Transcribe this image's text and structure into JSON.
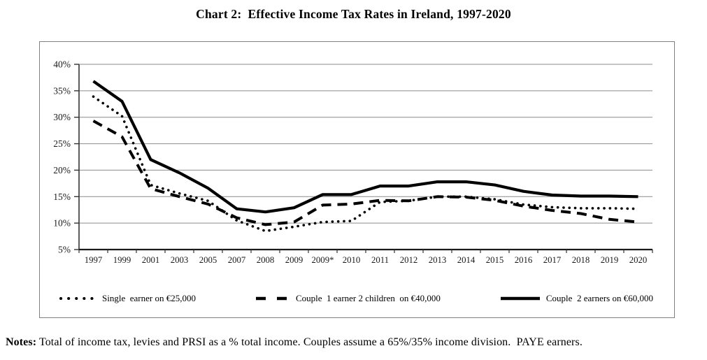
{
  "page": {
    "title": "Chart 2:  Effective Income Tax Rates in Ireland, 1997-2020",
    "notes_label": "Notes:",
    "notes_text": " Total of income tax, levies and PRSI as a % total income. Couples assume a 65%/35% income division.  PAYE earners."
  },
  "chart_data": {
    "type": "line",
    "title": "Chart 2: Effective Income Tax Rates in Ireland, 1997-2020",
    "categories": [
      "1997",
      "1999",
      "2001",
      "2003",
      "2005",
      "2007",
      "2008",
      "2009",
      "2009*",
      "2010",
      "2011",
      "2012",
      "2013",
      "2014",
      "2015",
      "2016",
      "2017",
      "2018",
      "2019",
      "2020"
    ],
    "series": [
      {
        "name": "Single  earner on €25,000",
        "style": "dotted",
        "values": [
          33.9,
          30.2,
          17.2,
          15.6,
          14.2,
          10.5,
          8.5,
          9.3,
          10.2,
          10.4,
          14.0,
          14.2,
          15.0,
          15.0,
          14.5,
          13.5,
          13.0,
          12.8,
          12.8,
          12.7
        ]
      },
      {
        "name": "Couple  1 earner 2 children  on €40,000",
        "style": "dashed",
        "values": [
          29.3,
          26.3,
          16.5,
          15.0,
          13.6,
          11.0,
          9.7,
          10.2,
          13.4,
          13.6,
          14.3,
          14.2,
          15.0,
          14.9,
          14.3,
          13.2,
          12.4,
          11.8,
          10.7,
          10.2
        ]
      },
      {
        "name": "Couple  2 earners on €60,000",
        "style": "solid",
        "values": [
          36.8,
          33.0,
          22.0,
          19.5,
          16.6,
          12.7,
          12.1,
          12.9,
          15.4,
          15.4,
          17.0,
          17.0,
          17.8,
          17.8,
          17.2,
          16.0,
          15.3,
          15.1,
          15.1,
          15.0
        ]
      }
    ],
    "xlabel": "",
    "ylabel": "",
    "ylim": [
      5,
      40
    ],
    "ytick_step": 5,
    "ytick_suffix": "%",
    "grid": true,
    "legend_position": "bottom",
    "colors": {
      "line": "#000000",
      "grid": "#8c8c8c",
      "axis": "#333333"
    }
  }
}
